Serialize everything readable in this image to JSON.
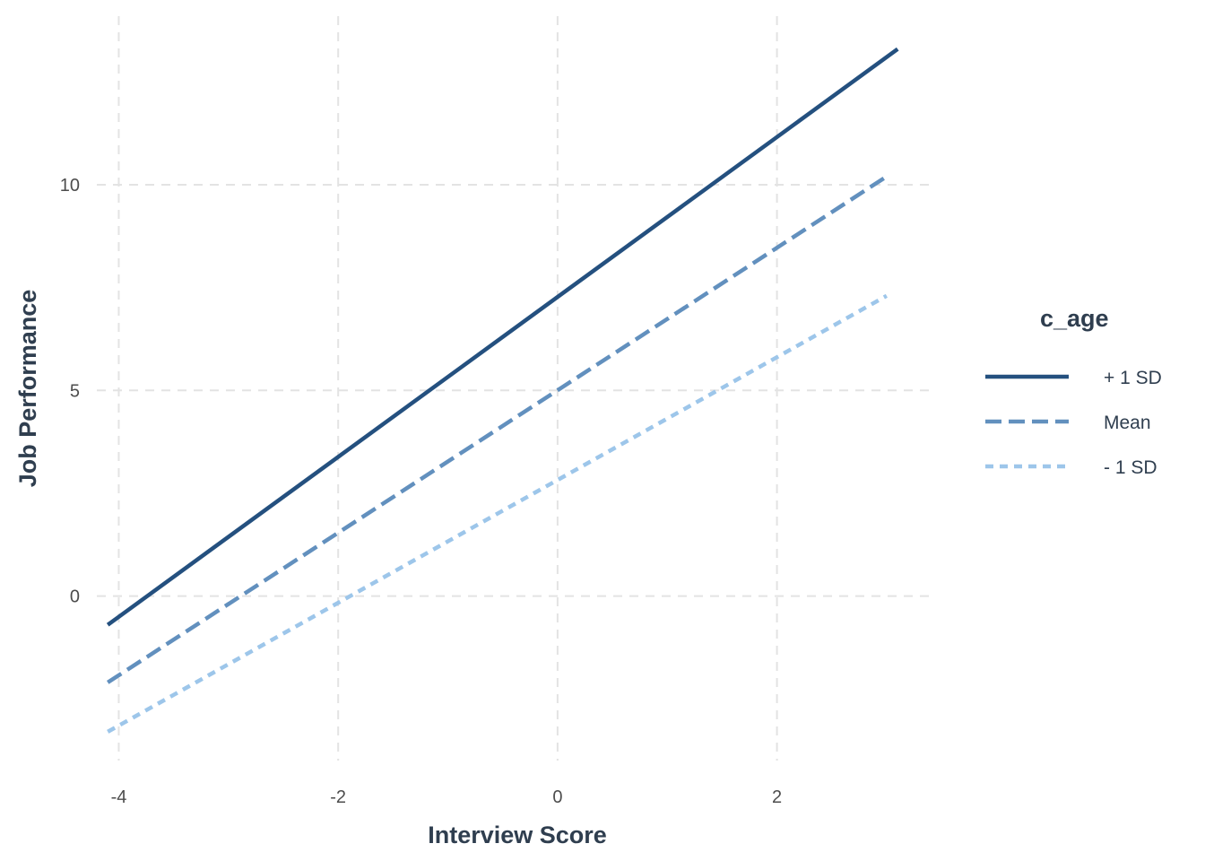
{
  "chart_data": {
    "type": "line",
    "title": "",
    "xlabel": "Interview Score",
    "ylabel": "Job Performance",
    "xlim": [
      -4.2,
      3.45
    ],
    "ylim": [
      -4.0,
      14.1
    ],
    "xticks": [
      -4,
      -2,
      0,
      2
    ],
    "yticks": [
      0,
      5,
      10
    ],
    "grid": true,
    "legend": {
      "title": "c_age",
      "placement": "right"
    },
    "series": [
      {
        "name": "+ 1 SD",
        "color": "#24507f",
        "linestyle": "solid",
        "x": [
          -4.1,
          3.1
        ],
        "y": [
          -0.7,
          13.3
        ]
      },
      {
        "name": "Mean",
        "color": "#6290be",
        "linestyle": "dashed",
        "x": [
          -4.1,
          3.0
        ],
        "y": [
          -2.1,
          10.2
        ]
      },
      {
        "name": "- 1 SD",
        "color": "#9dc6ea",
        "linestyle": "dotted",
        "x": [
          -4.1,
          3.0
        ],
        "y": [
          -3.3,
          7.3
        ]
      }
    ]
  }
}
